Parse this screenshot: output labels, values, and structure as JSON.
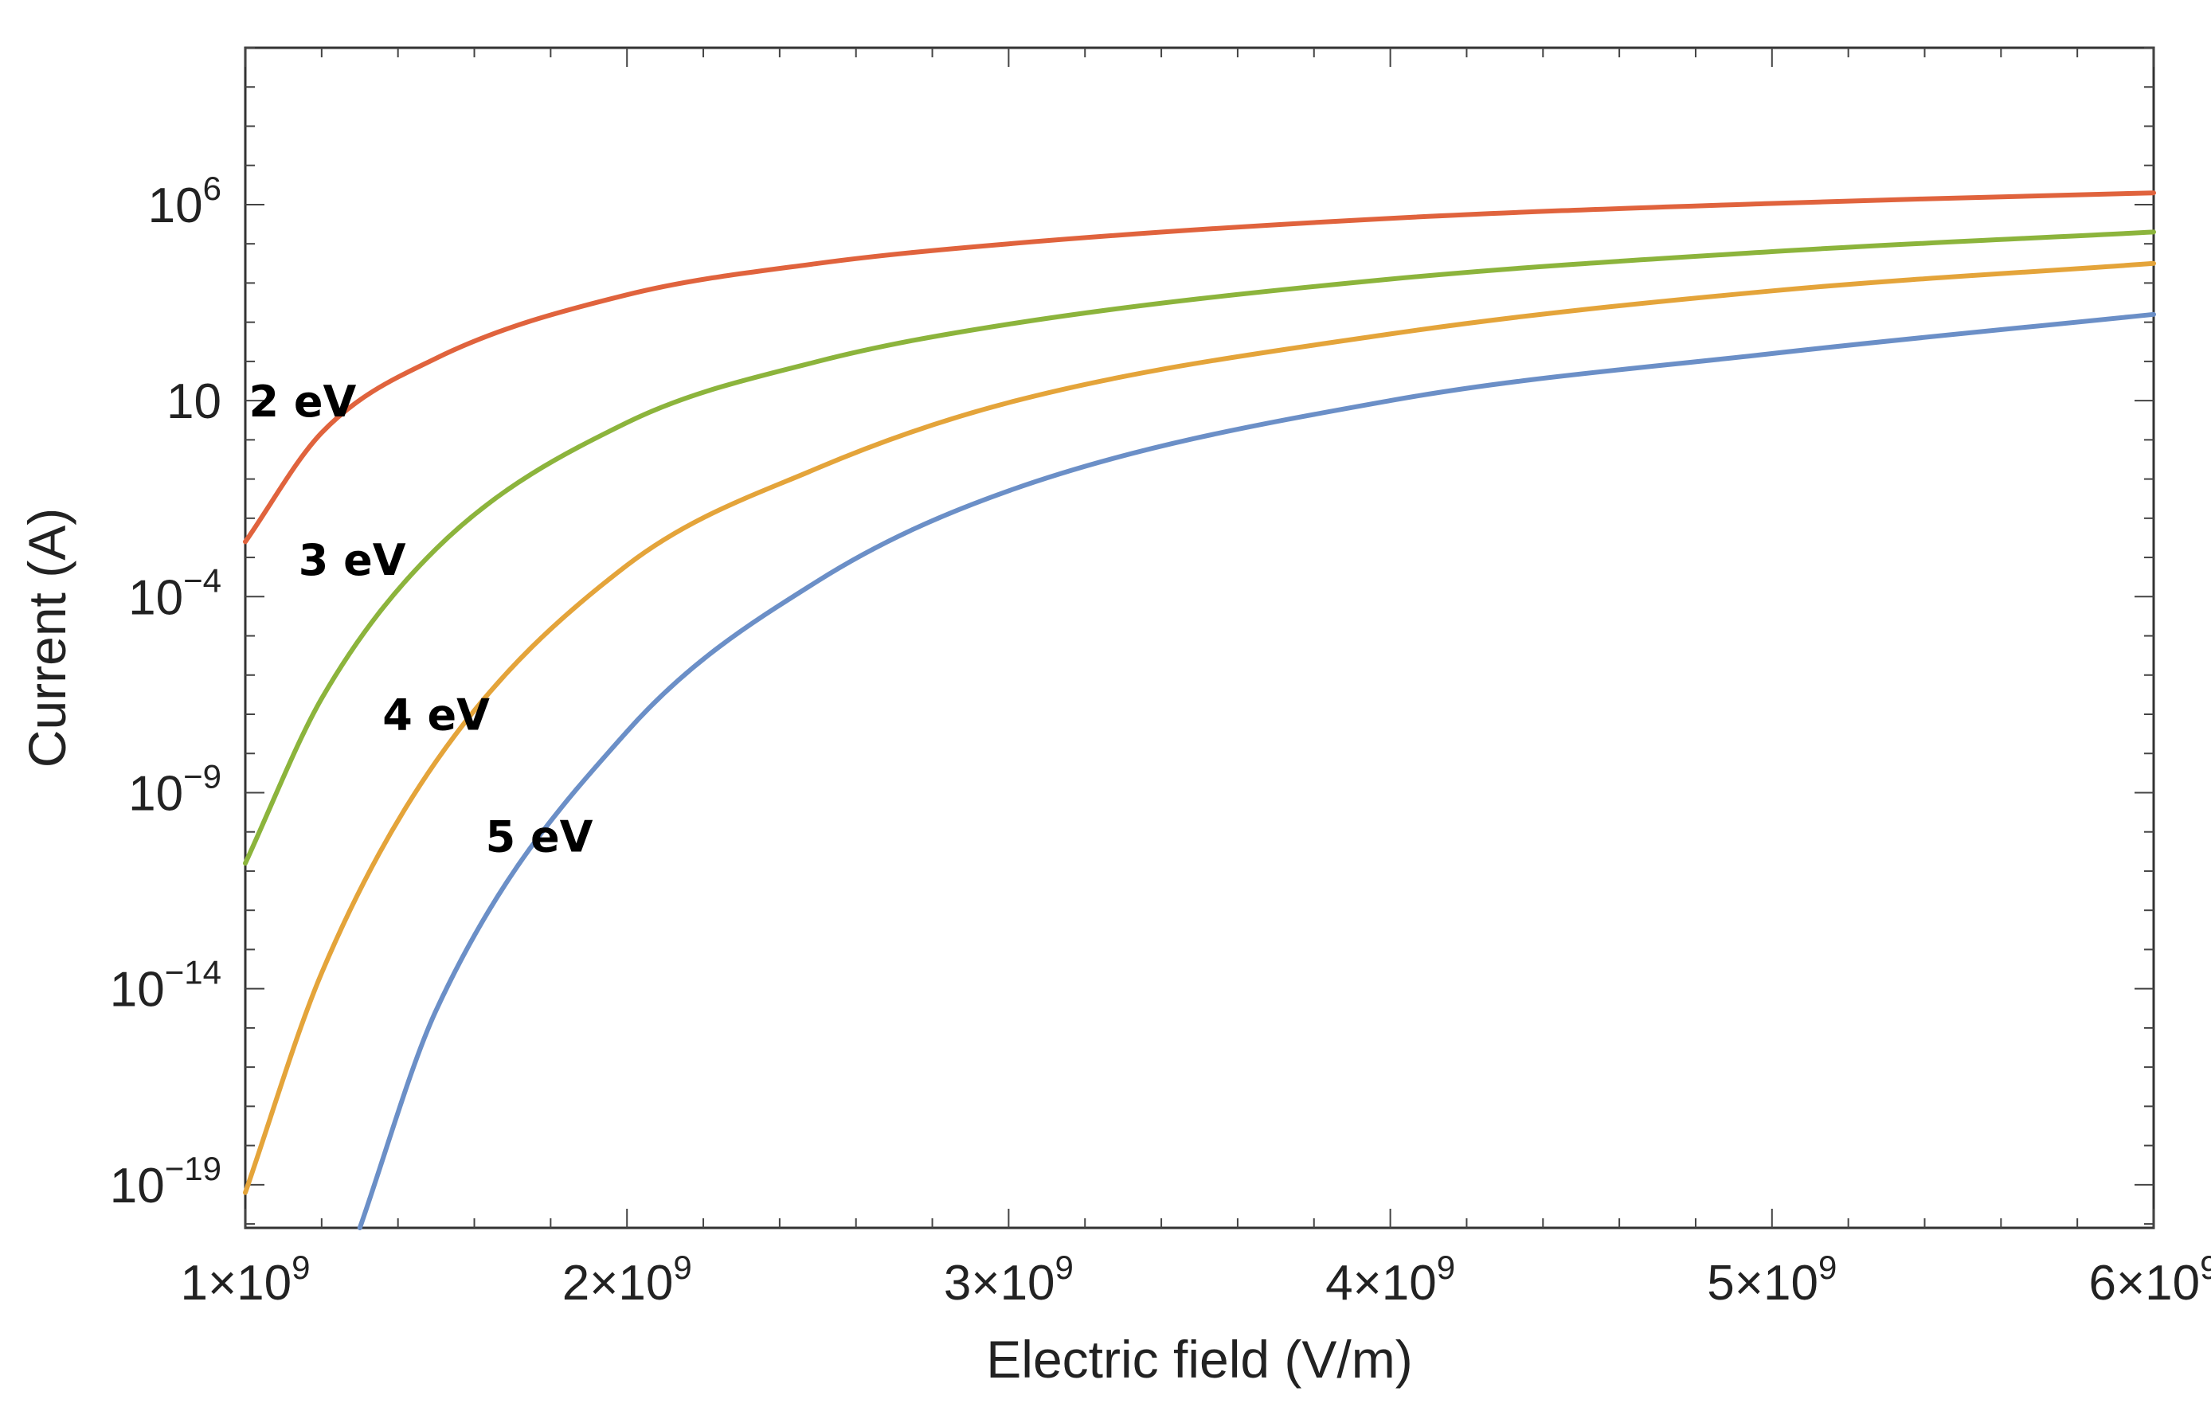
{
  "chart_data": {
    "type": "line",
    "title": "",
    "xlabel": "Electric field (V/m)",
    "ylabel": "Current (A)",
    "x_scale": "linear",
    "y_scale": "log",
    "xlim": [
      1000000000.0,
      6000000000.0
    ],
    "ylim_log10": [
      -20.1,
      10.0
    ],
    "x_ticks": [
      {
        "value": 1000000000.0,
        "mantissa": "1",
        "exponent": "9"
      },
      {
        "value": 2000000000.0,
        "mantissa": "2",
        "exponent": "9"
      },
      {
        "value": 3000000000.0,
        "mantissa": "3",
        "exponent": "9"
      },
      {
        "value": 4000000000.0,
        "mantissa": "4",
        "exponent": "9"
      },
      {
        "value": 5000000000.0,
        "mantissa": "5",
        "exponent": "9"
      },
      {
        "value": 6000000000.0,
        "mantissa": "6",
        "exponent": "9"
      }
    ],
    "y_ticks": [
      {
        "log10": 6,
        "base": "10",
        "exponent": "6"
      },
      {
        "log10": 1,
        "base": "10",
        "exponent": ""
      },
      {
        "log10": -4,
        "base": "10",
        "exponent": "−4"
      },
      {
        "log10": -9,
        "base": "10",
        "exponent": "−9"
      },
      {
        "log10": -14,
        "base": "10",
        "exponent": "−14"
      },
      {
        "log10": -19,
        "base": "10",
        "exponent": "−19"
      }
    ],
    "series": [
      {
        "name": "2 eV",
        "color": "#e0633d",
        "label_at": {
          "x": 1150000000.0,
          "log10y": 0.6
        },
        "points": [
          [
            1000000000.0,
            -2.6
          ],
          [
            1200000000.0,
            0.18
          ],
          [
            1500000000.0,
            2.08
          ],
          [
            2000000000.0,
            3.7
          ],
          [
            2500000000.0,
            4.5
          ],
          [
            3000000000.0,
            5.0
          ],
          [
            4000000000.0,
            5.65
          ],
          [
            5000000000.0,
            6.03
          ],
          [
            6000000000.0,
            6.3
          ]
        ]
      },
      {
        "name": "3 eV",
        "color": "#8cb43c",
        "label_at": {
          "x": 1280000000.0,
          "log10y": -3.45
        },
        "points": [
          [
            1000000000.0,
            -10.8
          ],
          [
            1200000000.0,
            -6.6
          ],
          [
            1500000000.0,
            -2.78
          ],
          [
            2000000000.0,
            0.44
          ],
          [
            2500000000.0,
            2.0
          ],
          [
            3000000000.0,
            2.95
          ],
          [
            4000000000.0,
            4.1
          ],
          [
            5000000000.0,
            4.8
          ],
          [
            6000000000.0,
            5.3
          ]
        ]
      },
      {
        "name": "4 eV",
        "color": "#e4a43a",
        "label_at": {
          "x": 1500000000.0,
          "log10y": -7.4
        },
        "points": [
          [
            1000000000.0,
            -19.2
          ],
          [
            1200000000.0,
            -13.6
          ],
          [
            1500000000.0,
            -8.2
          ],
          [
            2000000000.0,
            -3.2
          ],
          [
            2500000000.0,
            -0.72
          ],
          [
            3000000000.0,
            0.95
          ],
          [
            4000000000.0,
            2.7
          ],
          [
            5000000000.0,
            3.8
          ],
          [
            6000000000.0,
            4.5
          ]
        ]
      },
      {
        "name": "5 eV",
        "color": "#6b8fc7",
        "label_at": {
          "x": 1770000000.0,
          "log10y": -10.5
        },
        "points": [
          [
            1300000000.0,
            -20.1
          ],
          [
            1500000000.0,
            -14.55
          ],
          [
            2000000000.0,
            -7.44
          ],
          [
            2500000000.0,
            -3.6
          ],
          [
            3000000000.0,
            -1.3
          ],
          [
            4000000000.0,
            1.0
          ],
          [
            5000000000.0,
            2.2
          ],
          [
            6000000000.0,
            3.2
          ]
        ]
      }
    ]
  }
}
